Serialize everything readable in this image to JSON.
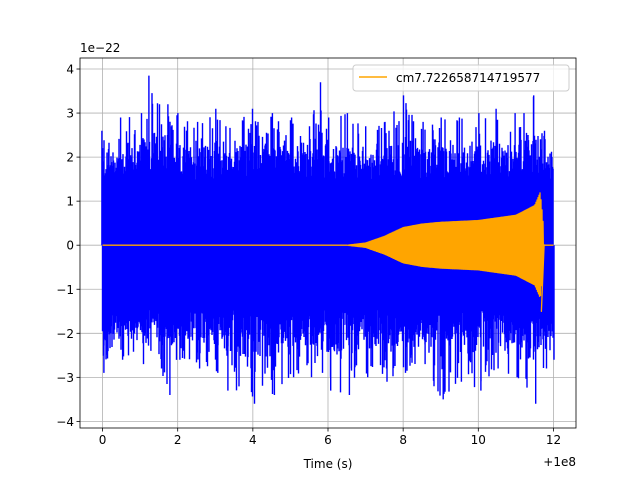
{
  "chart_data": {
    "type": "line",
    "title": "",
    "xlabel": "Time (s)",
    "ylabel": "",
    "xlim": [
      -0.6,
      12.6
    ],
    "ylim": [
      -4.15,
      4.25
    ],
    "x_offset_label": "+1e8",
    "y_scale_label": "1e−22",
    "x_ticks": [
      0,
      2,
      4,
      6,
      8,
      10,
      12
    ],
    "x_tick_labels": [
      "0",
      "2",
      "4",
      "6",
      "8",
      "10",
      "12"
    ],
    "y_ticks": [
      -4,
      -3,
      -2,
      -1,
      0,
      1,
      2,
      3,
      4
    ],
    "y_tick_labels": [
      "−4",
      "−3",
      "−2",
      "−1",
      "0",
      "1",
      "2",
      "3",
      "4"
    ],
    "grid": true,
    "legend_position": "top-right",
    "series": [
      {
        "name": "",
        "color": "#0000ff",
        "kind": "noise-strain",
        "x_range": [
          0,
          12
        ],
        "approx_envelope": [
          [
            0.0,
            2.6,
            -2.9
          ],
          [
            0.5,
            2.9,
            -2.6
          ],
          [
            1.0,
            3.0,
            -2.7
          ],
          [
            1.25,
            3.85,
            -2.4
          ],
          [
            1.5,
            3.2,
            -2.8
          ],
          [
            1.75,
            3.2,
            -3.4
          ],
          [
            2.0,
            3.0,
            -2.6
          ],
          [
            2.5,
            2.8,
            -2.8
          ],
          [
            3.0,
            3.1,
            -2.9
          ],
          [
            3.3,
            2.7,
            -3.3
          ],
          [
            4.0,
            3.1,
            -3.6
          ],
          [
            4.5,
            3.0,
            -3.4
          ],
          [
            5.0,
            2.9,
            -3.0
          ],
          [
            5.5,
            2.7,
            -3.0
          ],
          [
            5.8,
            3.7,
            -2.9
          ],
          [
            6.0,
            2.9,
            -3.3
          ],
          [
            6.5,
            3.0,
            -3.4
          ],
          [
            7.0,
            2.7,
            -3.0
          ],
          [
            7.5,
            2.8,
            -3.1
          ],
          [
            8.0,
            3.4,
            -2.9
          ],
          [
            8.5,
            2.8,
            -2.7
          ],
          [
            9.0,
            2.9,
            -3.5
          ],
          [
            9.5,
            2.9,
            -3.1
          ],
          [
            10.0,
            3.0,
            -3.3
          ],
          [
            10.5,
            3.1,
            -2.8
          ],
          [
            11.0,
            3.0,
            -3.0
          ],
          [
            11.5,
            3.4,
            -3.6
          ],
          [
            11.75,
            2.6,
            -2.8
          ],
          [
            12.0,
            2.0,
            -2.6
          ]
        ]
      },
      {
        "name": "cm7.722658714719577",
        "color": "#ffa500",
        "kind": "chirp",
        "x_range": [
          0,
          11.75
        ],
        "approx_envelope": [
          [
            0.0,
            0.0
          ],
          [
            6.5,
            0.0
          ],
          [
            7.0,
            0.05
          ],
          [
            7.5,
            0.2
          ],
          [
            8.0,
            0.4
          ],
          [
            8.5,
            0.48
          ],
          [
            9.0,
            0.52
          ],
          [
            10.0,
            0.56
          ],
          [
            11.0,
            0.68
          ],
          [
            11.5,
            0.9
          ],
          [
            11.65,
            1.2
          ],
          [
            11.72,
            0.6
          ],
          [
            11.75,
            0.0
          ]
        ],
        "merger_dip": -1.5
      }
    ]
  }
}
